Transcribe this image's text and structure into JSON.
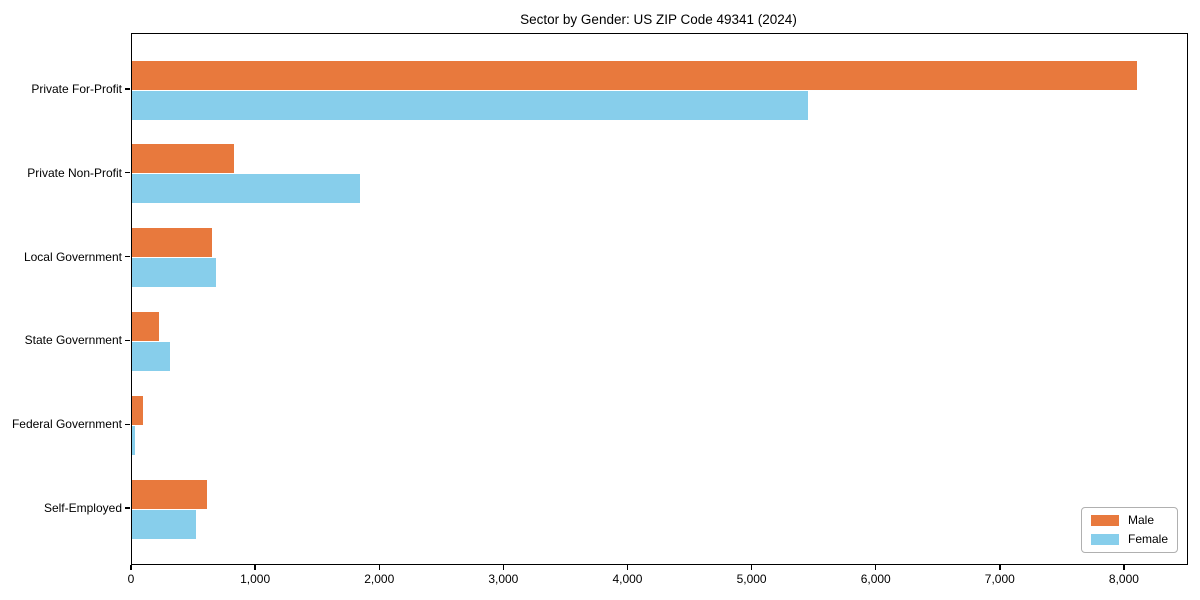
{
  "chart_data": {
    "type": "bar",
    "orientation": "horizontal",
    "title": "Sector by Gender: US ZIP Code 49341 (2024)",
    "xlabel": "",
    "ylabel": "",
    "categories": [
      "Private For-Profit",
      "Private Non-Profit",
      "Local Government",
      "State Government",
      "Federal Government",
      "Self-Employed"
    ],
    "series": [
      {
        "name": "Male",
        "color": "#e8793d",
        "values": [
          8100,
          820,
          645,
          220,
          90,
          605
        ]
      },
      {
        "name": "Female",
        "color": "#87ceeb",
        "values": [
          5450,
          1840,
          680,
          305,
          25,
          515
        ]
      }
    ],
    "xlim": [
      0,
      8500
    ],
    "xticks": [
      0,
      1000,
      2000,
      3000,
      4000,
      5000,
      6000,
      7000,
      8000
    ],
    "xtick_labels": [
      "0",
      "1,000",
      "2,000",
      "3,000",
      "4,000",
      "5,000",
      "6,000",
      "7,000",
      "8,000"
    ],
    "grid": false,
    "legend_position": "lower right"
  }
}
